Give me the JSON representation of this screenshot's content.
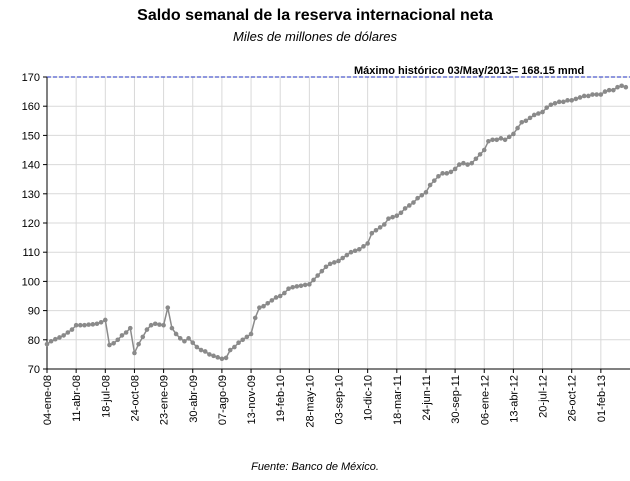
{
  "chart_data": {
    "type": "line",
    "title": "Saldo semanal de la reserva internacional neta",
    "subtitle": "Miles de millones de dólares",
    "source": "Fuente: Banco de México.",
    "annotation": "Máximo histórico 03/May/2013= 168.15 mmd",
    "reference_line": {
      "value": 170,
      "color": "#1f2fbf"
    },
    "categories": [
      "04-ene-08",
      null,
      null,
      null,
      null,
      null,
      null,
      "11-abr-08",
      null,
      null,
      null,
      null,
      null,
      null,
      "18-jul-08",
      null,
      null,
      null,
      null,
      null,
      null,
      "24-oct-08",
      null,
      null,
      null,
      null,
      null,
      null,
      "23-ene-09",
      null,
      null,
      null,
      null,
      null,
      null,
      "30-abr-09",
      null,
      null,
      null,
      null,
      null,
      null,
      "07-ago-09",
      null,
      null,
      null,
      null,
      null,
      null,
      "13-nov-09",
      null,
      null,
      null,
      null,
      null,
      null,
      "19-feb-10",
      null,
      null,
      null,
      null,
      null,
      null,
      "28-may-10",
      null,
      null,
      null,
      null,
      null,
      null,
      "03-sep-10",
      null,
      null,
      null,
      null,
      null,
      null,
      "10-dic-10",
      null,
      null,
      null,
      null,
      null,
      null,
      "18-mar-11",
      null,
      null,
      null,
      null,
      null,
      null,
      "24-jun-11",
      null,
      null,
      null,
      null,
      null,
      null,
      "30-sep-11",
      null,
      null,
      null,
      null,
      null,
      null,
      "06-ene-12",
      null,
      null,
      null,
      null,
      null,
      null,
      "13-abr-12",
      null,
      null,
      null,
      null,
      null,
      null,
      "20-jul-12",
      null,
      null,
      null,
      null,
      null,
      null,
      "26-oct-12",
      null,
      null,
      null,
      null,
      null,
      null,
      "01-feb-13",
      null,
      null,
      null,
      null,
      null,
      null
    ],
    "series": [
      {
        "name": "Reserva internacional neta",
        "color": "#8a8a8a",
        "values": [
          78.5,
          79.5,
          80.2,
          80.8,
          81.5,
          82.5,
          83.5,
          85.0,
          85.0,
          85.0,
          85.2,
          85.3,
          85.5,
          86.0,
          86.8,
          78.2,
          78.8,
          80.0,
          81.5,
          82.5,
          84.0,
          75.5,
          78.5,
          81.0,
          83.5,
          85.0,
          85.5,
          85.2,
          85.0,
          91.0,
          84.0,
          82.0,
          80.5,
          79.5,
          80.5,
          79.0,
          77.5,
          76.5,
          76.0,
          75.0,
          74.5,
          74.0,
          73.5,
          73.8,
          76.5,
          77.5,
          79.0,
          80.0,
          81.0,
          82.0,
          87.5,
          91.0,
          91.5,
          92.5,
          93.5,
          94.5,
          95.0,
          96.0,
          97.5,
          98.0,
          98.3,
          98.5,
          98.8,
          99.0,
          100.5,
          102.0,
          103.5,
          105.0,
          106.0,
          106.5,
          107.0,
          108.0,
          109.0,
          110.0,
          110.5,
          111.0,
          112.0,
          113.0,
          116.5,
          117.5,
          118.5,
          119.5,
          121.5,
          122.0,
          122.5,
          123.5,
          125.0,
          126.0,
          127.0,
          128.5,
          129.5,
          130.5,
          133.0,
          134.5,
          136.0,
          137.0,
          137.0,
          137.5,
          138.5,
          140.0,
          140.5,
          140.0,
          140.5,
          142.0,
          143.5,
          145.0,
          148.0,
          148.5,
          148.5,
          149.0,
          148.5,
          149.5,
          150.5,
          152.5,
          154.5,
          155.0,
          156.0,
          157.0,
          157.5,
          158.0,
          159.5,
          160.5,
          161.0,
          161.5,
          161.5,
          162.0,
          162.0,
          162.5,
          163.0,
          163.5,
          163.5,
          164.0,
          164.0,
          164.0,
          165.0,
          165.5,
          165.5,
          166.5,
          167.0,
          166.5
        ]
      }
    ],
    "ylim": [
      70,
      170
    ],
    "yticks": [
      70,
      80,
      90,
      100,
      110,
      120,
      130,
      140,
      150,
      160,
      170
    ],
    "grid": true
  }
}
